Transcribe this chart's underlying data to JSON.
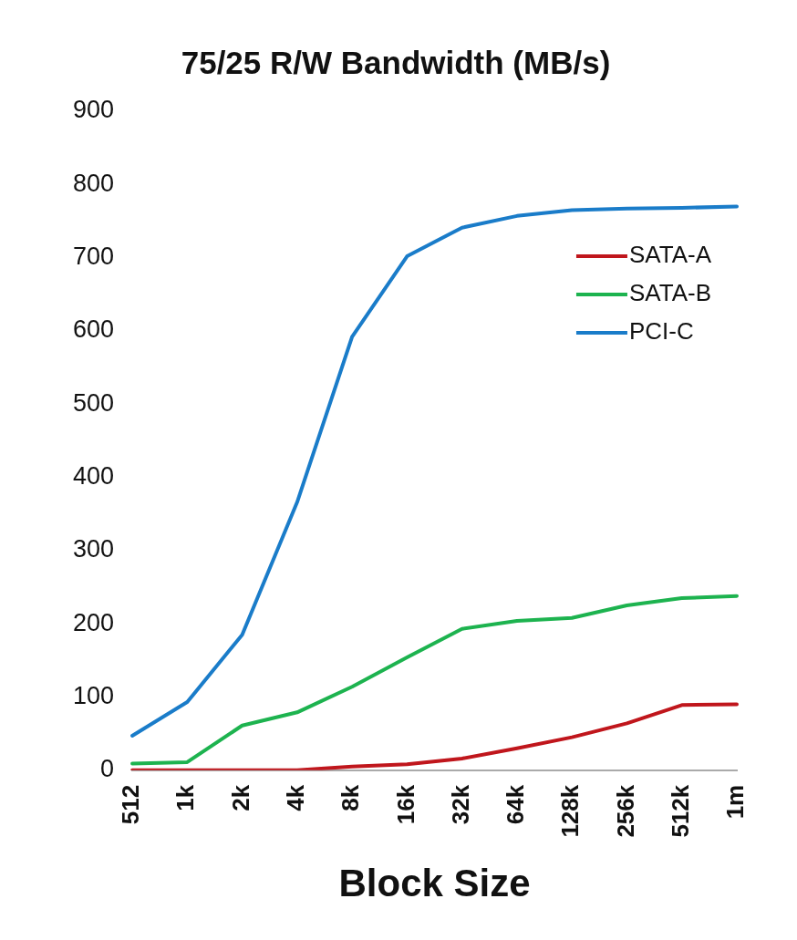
{
  "chart_data": {
    "type": "line",
    "title": "75/25 R/W Bandwidth (MB/s)",
    "xlabel": "Block Size",
    "categories": [
      "512",
      "1k",
      "2k",
      "4k",
      "8k",
      "16k",
      "32k",
      "64k",
      "128k",
      "256k",
      "512k",
      "1m"
    ],
    "series": [
      {
        "name": "SATA-A",
        "color": "#c0161c",
        "values": [
          0,
          0,
          0,
          0,
          5,
          8,
          16,
          30,
          45,
          64,
          89,
          90
        ]
      },
      {
        "name": "SATA-B",
        "color": "#1db34f",
        "values": [
          9,
          11,
          61,
          79,
          114,
          154,
          193,
          204,
          208,
          225,
          235,
          238
        ]
      },
      {
        "name": "PCI-C",
        "color": "#1a7cc9",
        "values": [
          47,
          93,
          185,
          366,
          592,
          702,
          741,
          757,
          765,
          767,
          768,
          770
        ]
      }
    ],
    "ylim": [
      0,
      900
    ],
    "yticks": [
      0,
      100,
      200,
      300,
      400,
      500,
      600,
      700,
      800,
      900
    ],
    "grid": false,
    "legend": "right",
    "marker": "none",
    "line_style": "solid"
  }
}
